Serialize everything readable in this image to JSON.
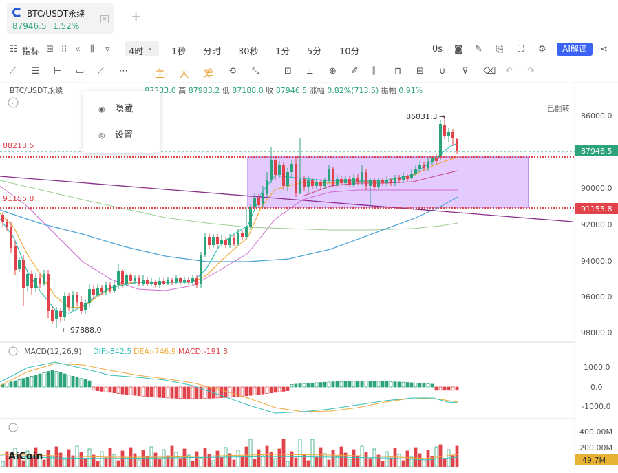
{
  "tab": {
    "title": "BTC/USDT永续",
    "price": "87946.5",
    "change": "1.52%",
    "close_icon": "close-icon",
    "add_icon": "plus-icon"
  },
  "toolbar": {
    "indicators_label": "指标",
    "interval_selected": "4时",
    "intervals": [
      "1秒",
      "分时",
      "30秒",
      "1分",
      "5分",
      "10分"
    ],
    "countdown": "0s",
    "ai_label": "AI解读"
  },
  "drawing_tools": {
    "main_label": "主",
    "big_label": "大",
    "chip_label": "筹"
  },
  "info_line": {
    "symbol": "BTC/USDT永续",
    "open_value": "87233.0",
    "high_label": "高",
    "high_value": "87983.2",
    "low_label": "低",
    "low_value": "87188.0",
    "close_label": "收",
    "close_value": "87946.5",
    "change_label": "涨幅",
    "change_value": "0.82%(713.5)",
    "amplitude_label": "振幅",
    "amplitude_value": "0.91%"
  },
  "popup_menu": {
    "items": [
      {
        "label": "隐藏",
        "icon": "eye-off-icon"
      },
      {
        "label": "设置",
        "icon": "gear-icon"
      }
    ]
  },
  "main_chart": {
    "flip_label": "已翻转",
    "y_ticks": [
      "86000.0",
      "88000.0",
      "90000.0",
      "92000.0",
      "94000.0",
      "96000.0",
      "98000.0"
    ],
    "current_price_tag": "87946.5",
    "level_tag_91155": "91155.8",
    "left_label_88213": "88213.5",
    "left_label_91155": "91155.8",
    "annotation_high": "86031.3",
    "annotation_low": "97888.0",
    "colors": {
      "up": "#2da37b",
      "down": "#e0444a",
      "box": "#c9a4ff"
    }
  },
  "macd": {
    "title": "MACD(12,26,9)",
    "dif_label": "DIF:-842.5",
    "dea_label": "DEA:-746.9",
    "macd_label": "MACD:-191.3",
    "y_ticks": [
      "1000.0",
      "0.0",
      "-1000.0"
    ]
  },
  "volume": {
    "y_ticks": [
      "400.00M",
      "200.00M"
    ],
    "current_tag": "49.7M",
    "watermark": "AiCoin"
  },
  "chart_data": {
    "type": "candlestick",
    "symbol": "BTC/USDT永续",
    "interval": "4时",
    "y_axis": {
      "inverted": true,
      "min": 85000,
      "max": 99000
    },
    "last_close": 87946.5,
    "marked_levels": [
      88213.5,
      91155.8
    ],
    "annotations": [
      {
        "label": "86031.3"
      },
      {
        "label": "97888.0"
      }
    ]
  }
}
